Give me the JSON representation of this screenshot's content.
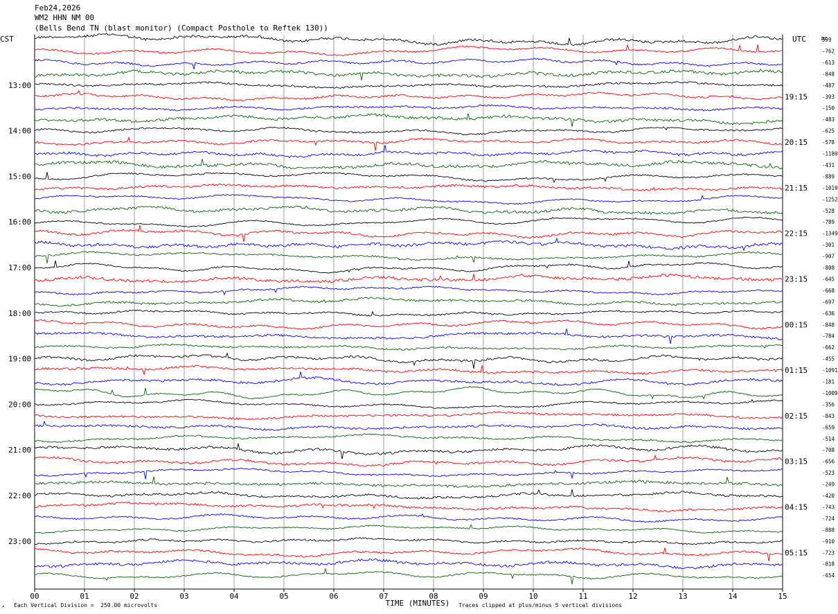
{
  "header": {
    "date": "Feb24,2026",
    "station": "WM2 HHN NM 00",
    "description": "(Bells Bend TN (blast monitor) (Compact Posthole to Reftek 130))"
  },
  "chart_data": {
    "type": "line",
    "title": "Feb24,2026",
    "left_axis_label": "CST",
    "right_axis_label": "UTC",
    "dc_header": "DC",
    "xlabel": "TIME (MINUTES)",
    "x_ticks": [
      "00",
      "01",
      "02",
      "03",
      "04",
      "05",
      "06",
      "07",
      "08",
      "09",
      "10",
      "11",
      "12",
      "13",
      "14",
      "15"
    ],
    "xlim": [
      0,
      15
    ],
    "grid": true,
    "trace_count": 48,
    "trace_minutes": 15,
    "trace_colors": [
      "#000000",
      "#ff0000",
      "#0000ff",
      "#006400"
    ],
    "left_hour_labels": [
      "13:00",
      "14:00",
      "15:00",
      "16:00",
      "17:00",
      "18:00",
      "19:00",
      "20:00",
      "21:00",
      "22:00",
      "23:00"
    ],
    "left_hour_trace_index": [
      4,
      8,
      12,
      16,
      20,
      24,
      28,
      32,
      36,
      40,
      44
    ],
    "right_hour_labels": [
      "19:15",
      "20:15",
      "21:15",
      "22:15",
      "23:15",
      "00:15",
      "01:15",
      "02:15",
      "03:15",
      "04:15",
      "05:15"
    ],
    "right_hour_trace_index": [
      5,
      9,
      13,
      17,
      21,
      25,
      29,
      33,
      37,
      41,
      45
    ],
    "dc_offsets": [
      "599",
      "-762",
      "-613",
      "-848",
      "-487",
      "-393",
      "-150",
      "-483",
      "-625",
      "-578",
      "-1180",
      "-431",
      "-889",
      "-1019",
      "-1252",
      "-528",
      "-789",
      "-1349",
      "-301",
      "-907",
      "-808",
      "-645",
      "-668",
      "-697",
      "-636",
      "-848",
      "-784",
      "-662",
      "-455",
      "-1091",
      "-181",
      "-1009",
      "-356",
      "-843",
      "-659",
      "-514",
      "-708",
      "-656",
      "-523",
      "-249",
      "-420",
      "-743",
      "-724",
      "-888",
      "-910",
      "-723",
      "-818",
      "-654"
    ],
    "footer_scale": "Each Vertical Division =  250.00 microvolts",
    "footer_clip": "Traces clipped at plus/minus 5 vertical divisions"
  }
}
